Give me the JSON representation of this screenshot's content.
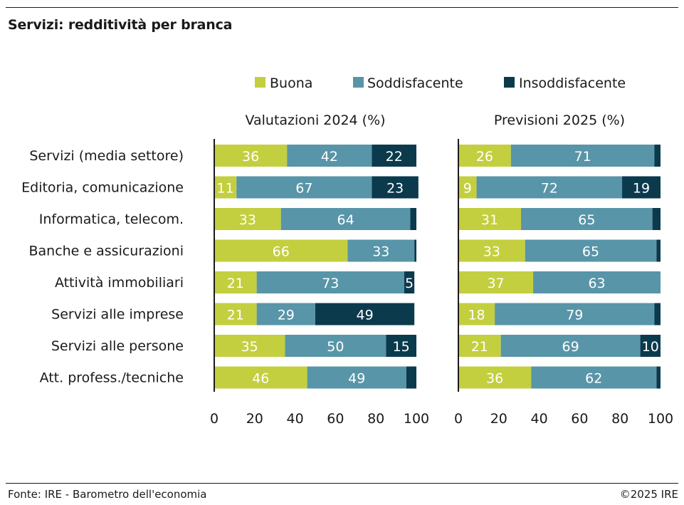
{
  "title": "Servizi: redditività per branca",
  "footer": {
    "source": "Fonte: IRE - Barometro dell'economia",
    "copyright": "©2025 IRE"
  },
  "colors": {
    "buona": "#c3cf3f",
    "soddisfacente": "#5895a8",
    "insoddisfacente": "#0b3a4d"
  },
  "chart_data": {
    "type": "bar",
    "orientation": "horizontal",
    "stacked": true,
    "legend": [
      "Buona",
      "Soddisfacente",
      "Insoddisfacente"
    ],
    "legend_position": "top",
    "categories": [
      "Servizi (media settore)",
      "Editoria, comunicazione",
      "Informatica, telecom.",
      "Banche e assicurazioni",
      "Attività immobiliari",
      "Servizi alle imprese",
      "Servizi alle persone",
      "Att. profess./tecniche"
    ],
    "xlim": [
      0,
      100
    ],
    "xticks": [
      "0",
      "20",
      "40",
      "60",
      "80",
      "100"
    ],
    "panels": [
      {
        "title": "Valutazioni 2024 (%)",
        "series": [
          {
            "name": "Buona",
            "values": [
              36,
              11,
              33,
              66,
              21,
              21,
              35,
              46
            ]
          },
          {
            "name": "Soddisfacente",
            "values": [
              42,
              67,
              64,
              33,
              73,
              29,
              50,
              49
            ]
          },
          {
            "name": "Insoddisfacente",
            "values": [
              22,
              23,
              3,
              1,
              5,
              49,
              15,
              5
            ]
          }
        ],
        "labels": [
          [
            "36",
            "11",
            "33",
            "66",
            "21",
            "21",
            "35",
            "46"
          ],
          [
            "42",
            "67",
            "64",
            "33",
            "73",
            "29",
            "50",
            "49"
          ],
          [
            "22",
            "23",
            "",
            "",
            "5",
            "49",
            "15",
            ""
          ]
        ]
      },
      {
        "title": "Previsioni 2025 (%)",
        "series": [
          {
            "name": "Buona",
            "values": [
              26,
              9,
              31,
              33,
              37,
              18,
              21,
              36
            ]
          },
          {
            "name": "Soddisfacente",
            "values": [
              71,
              72,
              65,
              65,
              63,
              79,
              69,
              62
            ]
          },
          {
            "name": "Insoddisfacente",
            "values": [
              3,
              19,
              4,
              2,
              0,
              3,
              10,
              2
            ]
          }
        ],
        "labels": [
          [
            "26",
            "9",
            "31",
            "33",
            "37",
            "18",
            "21",
            "36"
          ],
          [
            "71",
            "72",
            "65",
            "65",
            "63",
            "79",
            "69",
            "62"
          ],
          [
            "",
            "19",
            "",
            "",
            "",
            "",
            "10",
            ""
          ]
        ]
      }
    ]
  }
}
